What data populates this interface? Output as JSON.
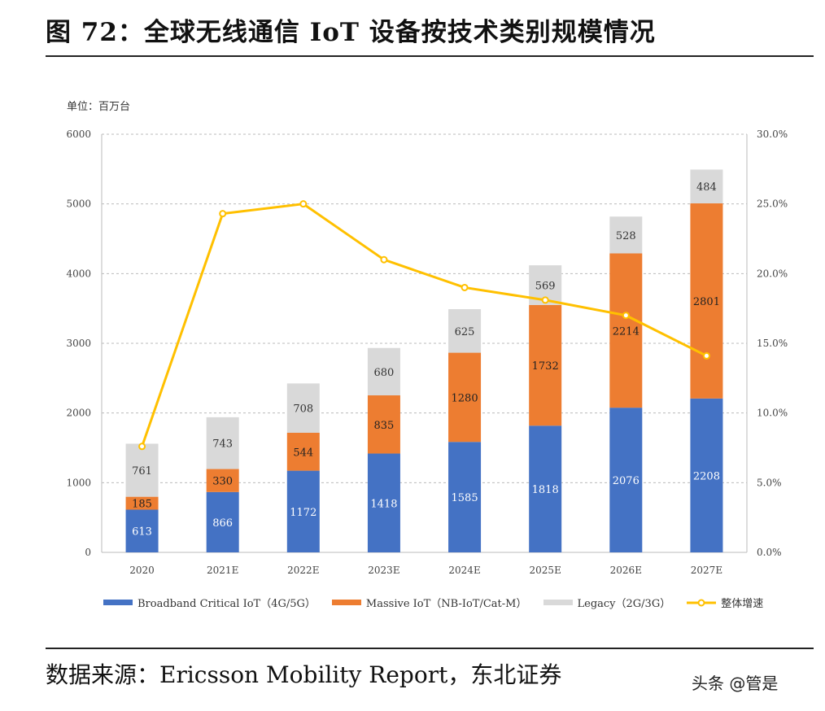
{
  "title": "图 72：全球无线通信 IoT 设备按技术类别规模情况",
  "unit_label": "单位：百万台",
  "source": "数据来源：Ericsson Mobility Report，东北证券",
  "watermark": "头条 @管是",
  "chart_data": {
    "type": "bar",
    "stacked": true,
    "categories": [
      "2020",
      "2021E",
      "2022E",
      "2023E",
      "2024E",
      "2025E",
      "2026E",
      "2027E"
    ],
    "series": [
      {
        "name": "Broadband Critical IoT（4G/5G）",
        "color": "#4472C4",
        "values": [
          613,
          866,
          1172,
          1418,
          1585,
          1818,
          2076,
          2208
        ]
      },
      {
        "name": "Massive IoT（NB-IoT/Cat-M）",
        "color": "#ED7D31",
        "values": [
          185,
          330,
          544,
          835,
          1280,
          1732,
          2214,
          2801
        ]
      },
      {
        "name": "Legacy（2G/3G）",
        "color": "#D9D9D9",
        "values": [
          761,
          743,
          708,
          680,
          625,
          569,
          528,
          484
        ]
      }
    ],
    "line_series": {
      "name": "整体增速",
      "color": "#FFC000",
      "axis": "right",
      "values": [
        7.6,
        24.3,
        25.0,
        21.0,
        19.0,
        18.1,
        17.0,
        14.1
      ]
    },
    "ylim": [
      0,
      6000
    ],
    "yticks": [
      "0",
      "1000",
      "2000",
      "3000",
      "4000",
      "5000",
      "6000"
    ],
    "y2lim": [
      0,
      30
    ],
    "y2ticks": [
      "0.0%",
      "5.0%",
      "10.0%",
      "15.0%",
      "20.0%",
      "25.0%",
      "30.0%"
    ],
    "grid": true,
    "legend_position": "bottom"
  }
}
